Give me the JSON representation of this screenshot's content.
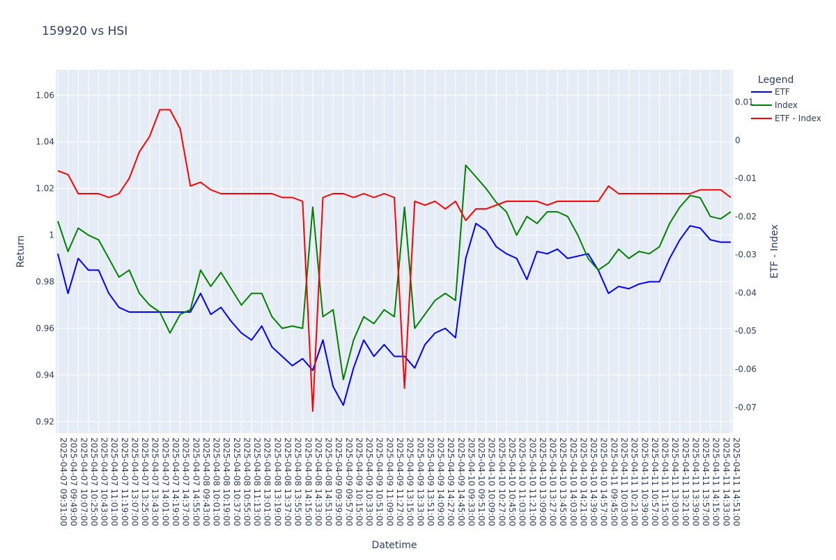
{
  "chart_data": {
    "type": "line",
    "title": "159920 vs HSI",
    "xlabel": "Datetime",
    "ylabel": "Return",
    "y2label": "ETF - Index",
    "legend_title": "Legend",
    "legend_position": "top-right",
    "grid": true,
    "ylim": [
      0.915,
      1.071
    ],
    "y2lim": [
      -0.0768,
      0.0185
    ],
    "yticks": [
      0.92,
      0.94,
      0.96,
      0.98,
      1,
      1.02,
      1.04,
      1.06
    ],
    "y2ticks": [
      -0.07,
      -0.06,
      -0.05,
      -0.04,
      -0.03,
      -0.02,
      -0.01,
      0,
      0.01
    ],
    "x": [
      "2025-04-07 09:31:00",
      "2025-04-07 09:49:00",
      "2025-04-07 10:07:00",
      "2025-04-07 10:25:00",
      "2025-04-07 10:43:00",
      "2025-04-07 11:01:00",
      "2025-04-07 11:19:00",
      "2025-04-07 13:07:00",
      "2025-04-07 13:25:00",
      "2025-04-07 13:43:00",
      "2025-04-07 14:01:00",
      "2025-04-07 14:19:00",
      "2025-04-07 14:37:00",
      "2025-04-07 14:55:00",
      "2025-04-08 09:43:00",
      "2025-04-08 10:01:00",
      "2025-04-08 10:19:00",
      "2025-04-08 10:37:00",
      "2025-04-08 10:55:00",
      "2025-04-08 11:13:00",
      "2025-04-08 13:01:00",
      "2025-04-08 13:19:00",
      "2025-04-08 13:37:00",
      "2025-04-08 13:55:00",
      "2025-04-08 14:15:00",
      "2025-04-08 14:33:00",
      "2025-04-08 14:51:00",
      "2025-04-09 09:39:00",
      "2025-04-09 09:57:00",
      "2025-04-09 10:15:00",
      "2025-04-09 10:33:00",
      "2025-04-09 10:51:00",
      "2025-04-09 11:09:00",
      "2025-04-09 11:27:00",
      "2025-04-09 13:15:00",
      "2025-04-09 13:33:00",
      "2025-04-09 13:51:00",
      "2025-04-09 14:09:00",
      "2025-04-09 14:27:00",
      "2025-04-09 14:45:00",
      "2025-04-10 09:33:00",
      "2025-04-10 09:51:00",
      "2025-04-10 10:09:00",
      "2025-04-10 10:27:00",
      "2025-04-10 10:45:00",
      "2025-04-10 11:03:00",
      "2025-04-10 11:21:00",
      "2025-04-10 13:09:00",
      "2025-04-10 13:27:00",
      "2025-04-10 13:45:00",
      "2025-04-10 14:03:00",
      "2025-04-10 14:21:00",
      "2025-04-10 14:39:00",
      "2025-04-10 14:57:00",
      "2025-04-11 09:45:00",
      "2025-04-11 10:03:00",
      "2025-04-11 10:21:00",
      "2025-04-11 10:39:00",
      "2025-04-11 10:57:00",
      "2025-04-11 11:15:00",
      "2025-04-11 13:03:00",
      "2025-04-11 13:21:00",
      "2025-04-11 13:39:00",
      "2025-04-11 13:57:00",
      "2025-04-11 14:15:00",
      "2025-04-11 14:33:00",
      "2025-04-11 14:51:00"
    ],
    "series": [
      {
        "name": "ETF",
        "color": "#0000ff",
        "axis": "left",
        "values": [
          0.992,
          0.975,
          0.99,
          0.985,
          0.985,
          0.975,
          0.969,
          0.967,
          0.967,
          0.967,
          0.967,
          0.967,
          0.967,
          0.967,
          0.975,
          0.966,
          0.969,
          0.963,
          0.958,
          0.955,
          0.961,
          0.952,
          0.948,
          0.944,
          0.947,
          0.942,
          0.955,
          0.935,
          0.927,
          0.943,
          0.955,
          0.948,
          0.953,
          0.948,
          0.948,
          0.943,
          0.953,
          0.958,
          0.96,
          0.956,
          0.99,
          1.005,
          1.002,
          0.995,
          0.992,
          0.99,
          0.981,
          0.993,
          0.992,
          0.994,
          0.99,
          0.991,
          0.992,
          0.985,
          0.975,
          0.978,
          0.977,
          0.979,
          0.98,
          0.98,
          0.99,
          0.998,
          1.004,
          1.003,
          0.998,
          0.997,
          0.997
        ]
      },
      {
        "name": "Index",
        "color": "#008000",
        "axis": "left",
        "values": [
          1.006,
          0.993,
          1.003,
          1.0,
          0.998,
          0.99,
          0.982,
          0.985,
          0.975,
          0.97,
          0.967,
          0.958,
          0.966,
          0.968,
          0.985,
          0.978,
          0.984,
          0.977,
          0.97,
          0.975,
          0.975,
          0.965,
          0.96,
          0.961,
          0.96,
          1.012,
          0.965,
          0.968,
          0.938,
          0.955,
          0.965,
          0.962,
          0.968,
          0.965,
          1.012,
          0.96,
          0.966,
          0.972,
          0.975,
          0.972,
          1.03,
          1.025,
          1.02,
          1.014,
          1.01,
          1.0,
          1.008,
          1.005,
          1.01,
          1.01,
          1.008,
          1.0,
          0.99,
          0.985,
          0.988,
          0.994,
          0.99,
          0.993,
          0.992,
          0.995,
          1.005,
          1.012,
          1.017,
          1.016,
          1.008,
          1.007,
          1.01
        ]
      },
      {
        "name": "ETF - Index",
        "color": "#ff0000",
        "axis": "right",
        "values": [
          -0.008,
          -0.009,
          -0.014,
          -0.014,
          -0.014,
          -0.015,
          -0.014,
          -0.01,
          -0.003,
          0.001,
          0.008,
          0.008,
          0.003,
          -0.012,
          -0.011,
          -0.013,
          -0.014,
          -0.014,
          -0.014,
          -0.014,
          -0.014,
          -0.014,
          -0.015,
          -0.015,
          -0.016,
          -0.071,
          -0.015,
          -0.014,
          -0.014,
          -0.015,
          -0.014,
          -0.015,
          -0.014,
          -0.015,
          -0.065,
          -0.016,
          -0.017,
          -0.016,
          -0.018,
          -0.016,
          -0.021,
          -0.018,
          -0.018,
          -0.017,
          -0.016,
          -0.016,
          -0.016,
          -0.016,
          -0.017,
          -0.016,
          -0.016,
          -0.016,
          -0.016,
          -0.016,
          -0.012,
          -0.014,
          -0.014,
          -0.014,
          -0.014,
          -0.014,
          -0.014,
          -0.014,
          -0.014,
          -0.013,
          -0.013,
          -0.013,
          -0.015
        ]
      }
    ]
  }
}
